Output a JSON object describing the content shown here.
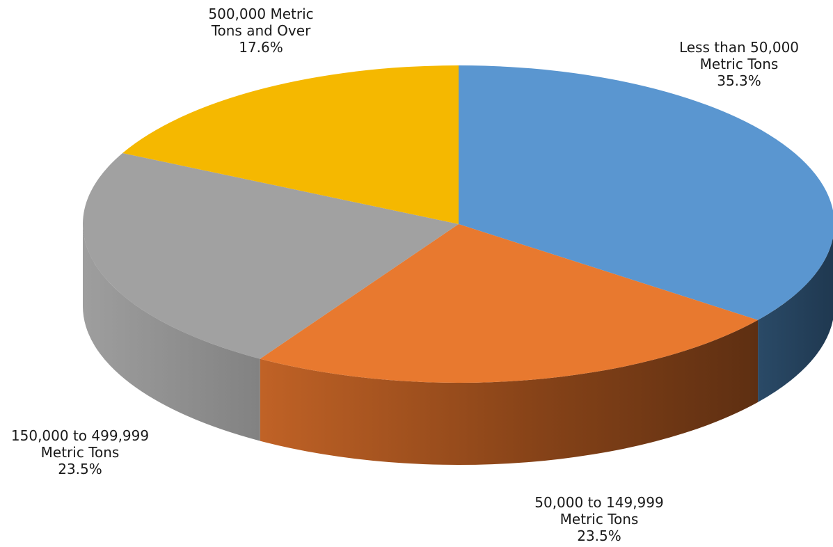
{
  "chart_data": {
    "type": "pie",
    "style": "3d",
    "slices": [
      {
        "label_lines": [
          "Less than 50,000",
          "Metric Tons"
        ],
        "percent_label": "35.3%",
        "value": 35.3,
        "color": "#5A96D0",
        "side_color": "#233F58"
      },
      {
        "label_lines": [
          "50,000 to 149,999",
          "Metric Tons"
        ],
        "percent_label": "23.5%",
        "value": 23.5,
        "color": "#E8792F",
        "side_color": "#6B3414"
      },
      {
        "label_lines": [
          "150,000 to 499,999",
          "Metric Tons"
        ],
        "percent_label": "23.5%",
        "value": 23.5,
        "color": "#A1A1A1",
        "side_color": "#8A8A8A"
      },
      {
        "label_lines": [
          "500,000 Metric",
          "Tons and Over"
        ],
        "percent_label": "17.6%",
        "value": 17.6,
        "color": "#F5B800",
        "side_color": "#8A6800"
      }
    ]
  }
}
